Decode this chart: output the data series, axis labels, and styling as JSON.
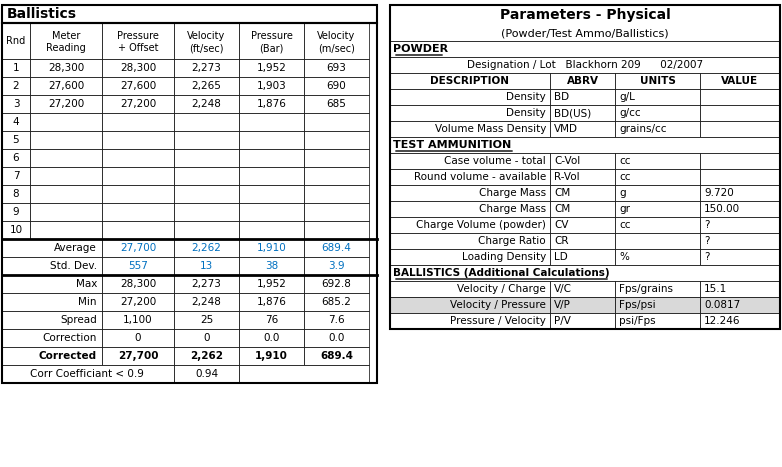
{
  "left_title": "Ballistics",
  "right_title": "Parameters - Physical",
  "right_subtitle": "(Powder/Test Ammo/Ballistics)",
  "left_headers": [
    "Rnd",
    "Meter\nReading",
    "Pressure\n+ Offset",
    "Velocity\n(ft/sec)",
    "Pressure\n(Bar)",
    "Velocity\n(m/sec)"
  ],
  "rounds": [
    [
      1,
      "28,300",
      "28,300",
      "2,273",
      "1,952",
      "693"
    ],
    [
      2,
      "27,600",
      "27,600",
      "2,265",
      "1,903",
      "690"
    ],
    [
      3,
      "27,200",
      "27,200",
      "2,248",
      "1,876",
      "685"
    ],
    [
      4,
      "",
      "",
      "",
      "",
      ""
    ],
    [
      5,
      "",
      "",
      "",
      "",
      ""
    ],
    [
      6,
      "",
      "",
      "",
      "",
      ""
    ],
    [
      7,
      "",
      "",
      "",
      "",
      ""
    ],
    [
      8,
      "",
      "",
      "",
      "",
      ""
    ],
    [
      9,
      "",
      "",
      "",
      "",
      ""
    ],
    [
      10,
      "",
      "",
      "",
      "",
      ""
    ]
  ],
  "stats": [
    [
      "Average",
      "27,700",
      "2,262",
      "1,910",
      "689.4",
      true
    ],
    [
      "Std. Dev.",
      "557",
      "13",
      "38",
      "3.9",
      true
    ],
    [
      "Max",
      "28,300",
      "2,273",
      "1,952",
      "692.8",
      false
    ],
    [
      "Min",
      "27,200",
      "2,248",
      "1,876",
      "685.2",
      false
    ],
    [
      "Spread",
      "1,100",
      "25",
      "76",
      "7.6",
      false
    ],
    [
      "Correction",
      "0",
      "0",
      "0.0",
      "0.0",
      false
    ],
    [
      "Corrected",
      "27,700",
      "2,262",
      "1,910",
      "689.4",
      false
    ]
  ],
  "corr_label": "Corr Coefficiant < 0.9",
  "corr_value": "0.94",
  "powder_section": "POWDER",
  "designation_label": "Designation / Lot",
  "designation_value": "Blackhorn 209",
  "designation_date": "02/2007",
  "powder_headers": [
    "DESCRIPTION",
    "ABRV",
    "UNITS",
    "VALUE"
  ],
  "powder_rows": [
    [
      "Density",
      "BD",
      "g/L",
      ""
    ],
    [
      "Density",
      "BD(US)",
      "g/cc",
      ""
    ],
    [
      "Volume Mass Density",
      "VMD",
      "grains/cc",
      ""
    ]
  ],
  "ammo_section": "TEST AMMUNITION",
  "ammo_rows": [
    [
      "Case volume - total",
      "C-Vol",
      "cc",
      ""
    ],
    [
      "Round volume - available",
      "R-Vol",
      "cc",
      ""
    ],
    [
      "Charge Mass",
      "CM",
      "g",
      "9.720"
    ],
    [
      "Charge Mass",
      "CM",
      "gr",
      "150.00"
    ],
    [
      "Charge Volume (powder)",
      "CV",
      "cc",
      "?"
    ],
    [
      "Charge Ratio",
      "CR",
      "",
      "?"
    ],
    [
      "Loading Density",
      "LD",
      "%",
      "?"
    ]
  ],
  "ballistics_section": "BALLISTICS (Additional Calculations)",
  "ballistics_rows": [
    [
      "Velocity / Charge",
      "V/C",
      "Fps/grains",
      "15.1"
    ],
    [
      "Velocity / Pressure",
      "V/P",
      "Fps/psi",
      "0.0817"
    ],
    [
      "Pressure / Velocity",
      "P/V",
      "psi/Fps",
      "12.246"
    ]
  ],
  "blue_color": "#0070C0",
  "header_bg": "#FFFFFF",
  "alt_row_bg": "#E8E8E8",
  "border_color": "#000000"
}
